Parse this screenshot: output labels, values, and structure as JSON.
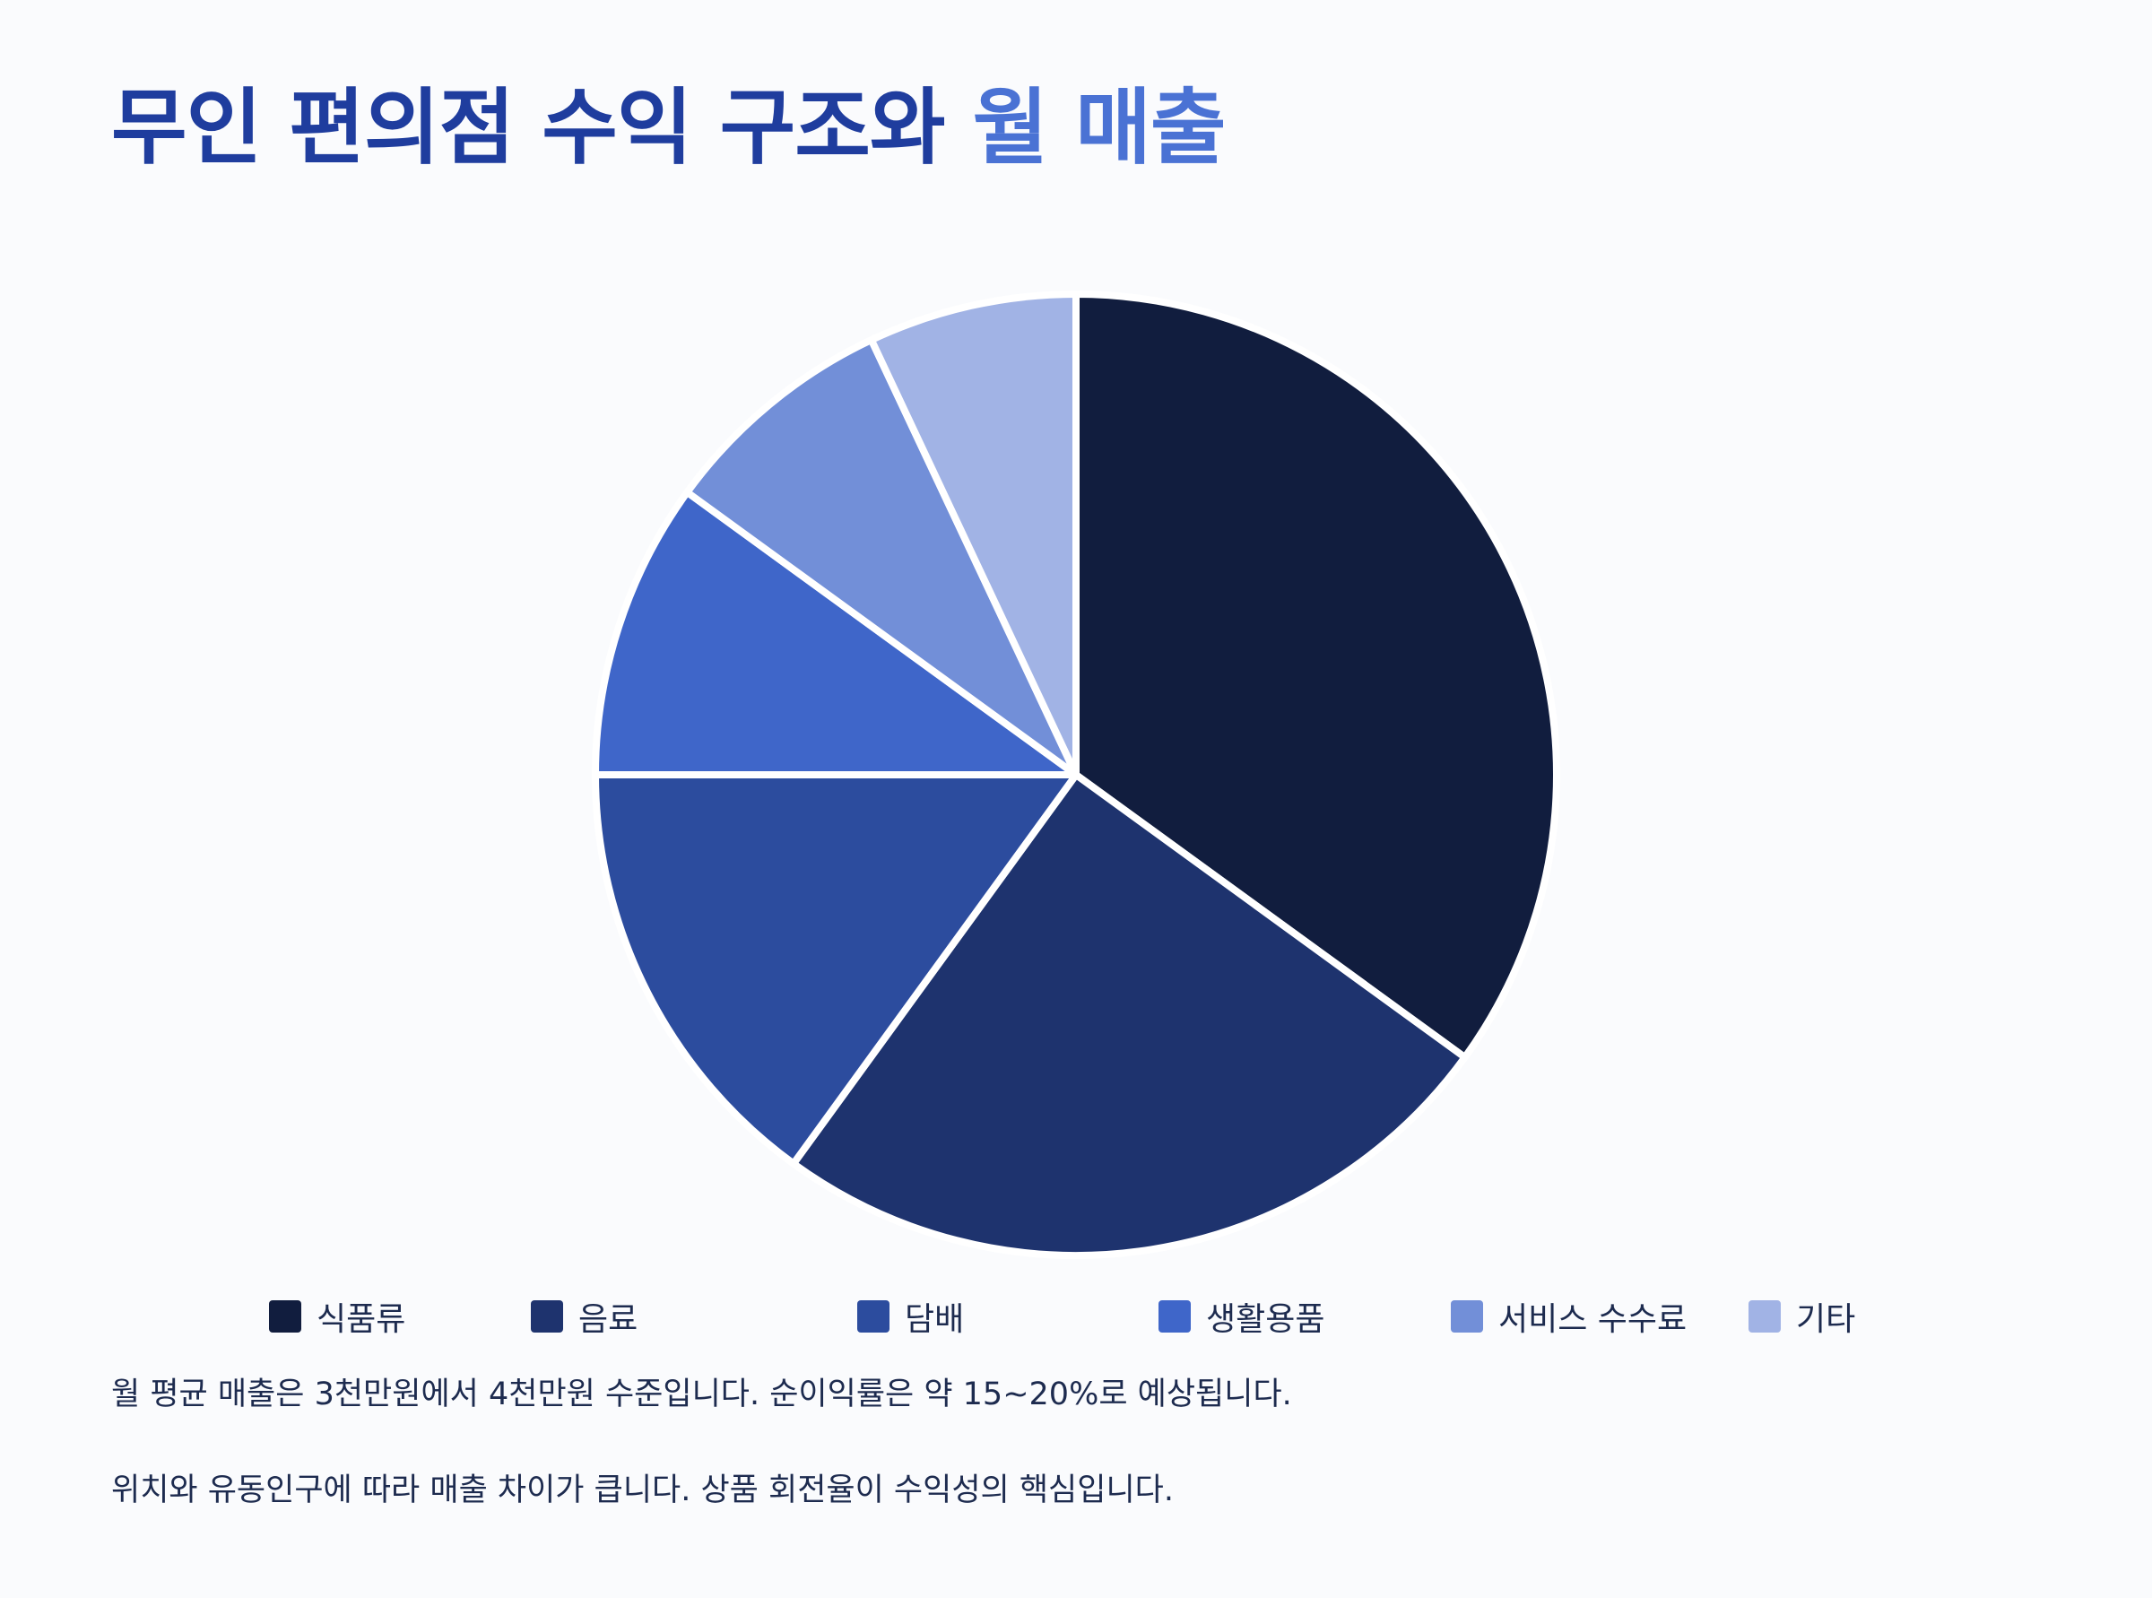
{
  "page": {
    "title_part1": "무인 편의점 수익 구조와",
    "title_part2": "월 매출",
    "notes": [
      "월 평균 매출은 3천만원에서 4천만원 수준입니다. 순이익률은 약 15~20%로 예상됩니다.",
      "위치와 유동인구에 따라 매출 차이가 큽니다. 상품 회전율이 수익성의 핵심입니다."
    ]
  },
  "chart_data": {
    "type": "pie",
    "title": "",
    "categories": [
      "식품류",
      "음료",
      "담배",
      "생활용품",
      "서비스 수수료",
      "기타"
    ],
    "values": [
      35,
      25,
      15,
      10,
      8,
      7
    ],
    "colors": [
      "#111d3e",
      "#1e336e",
      "#2c4c9e",
      "#3f66c9",
      "#728fd8",
      "#a1b3e5"
    ],
    "start_angle_deg": 0,
    "direction": "clockwise",
    "separator_color": "#ffffff",
    "legend_position": "bottom"
  }
}
